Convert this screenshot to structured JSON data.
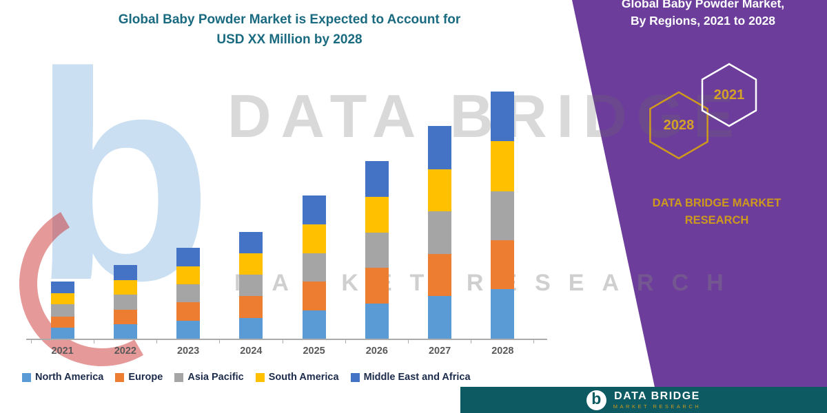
{
  "chart_data": {
    "type": "bar",
    "stacked": true,
    "title": "Global Baby Powder Market is Expected to Account for USD XX Million by 2028",
    "title_lines": [
      "Global Baby Powder Market is Expected to Account for",
      "USD XX Million by 2028"
    ],
    "categories": [
      "2021",
      "2022",
      "2023",
      "2024",
      "2025",
      "2026",
      "2027",
      "2028"
    ],
    "series": [
      {
        "name": "North America",
        "color": "#5B9BD5",
        "values": [
          16,
          21,
          26,
          30,
          41,
          51,
          61,
          71
        ]
      },
      {
        "name": "Europe",
        "color": "#ED7D31",
        "values": [
          16,
          21,
          26,
          31,
          41,
          51,
          61,
          71
        ]
      },
      {
        "name": "Asia Pacific",
        "color": "#A5A5A5",
        "values": [
          17,
          21,
          26,
          31,
          41,
          51,
          61,
          70
        ]
      },
      {
        "name": "South America",
        "color": "#FFC000",
        "values": [
          16,
          21,
          26,
          31,
          41,
          51,
          61,
          72
        ]
      },
      {
        "name": "Middle East and Africa",
        "color": "#4472C4",
        "values": [
          17,
          22,
          27,
          31,
          42,
          52,
          62,
          71
        ]
      }
    ],
    "ylim": [
      0,
      380
    ],
    "xlabel": "",
    "ylabel": "",
    "y_axis_visible": false,
    "grid": false,
    "legend_position": "bottom"
  },
  "watermark": {
    "logo_letter": "b",
    "line1": "DATA BRIDGE",
    "line2": "MARKET RESEARCH"
  },
  "side_panel": {
    "bg_color": "#6C3D9B",
    "title_line1": "Global Baby Powder Market,",
    "title_line2": "By Regions, 2021 to 2028",
    "hexagons": [
      {
        "label": "2028",
        "outline": "#CE9A1D"
      },
      {
        "label": "2021",
        "outline": "#FFFFFF"
      }
    ],
    "brand_line1": "DATA BRIDGE MARKET",
    "brand_line2": "RESEARCH",
    "accent_color": "#CE9A1D"
  },
  "footer": {
    "bg_color": "#0D5A62",
    "logo_letter": "b",
    "brand": "DATA BRIDGE",
    "tagline": "MARKET RESEARCH"
  }
}
